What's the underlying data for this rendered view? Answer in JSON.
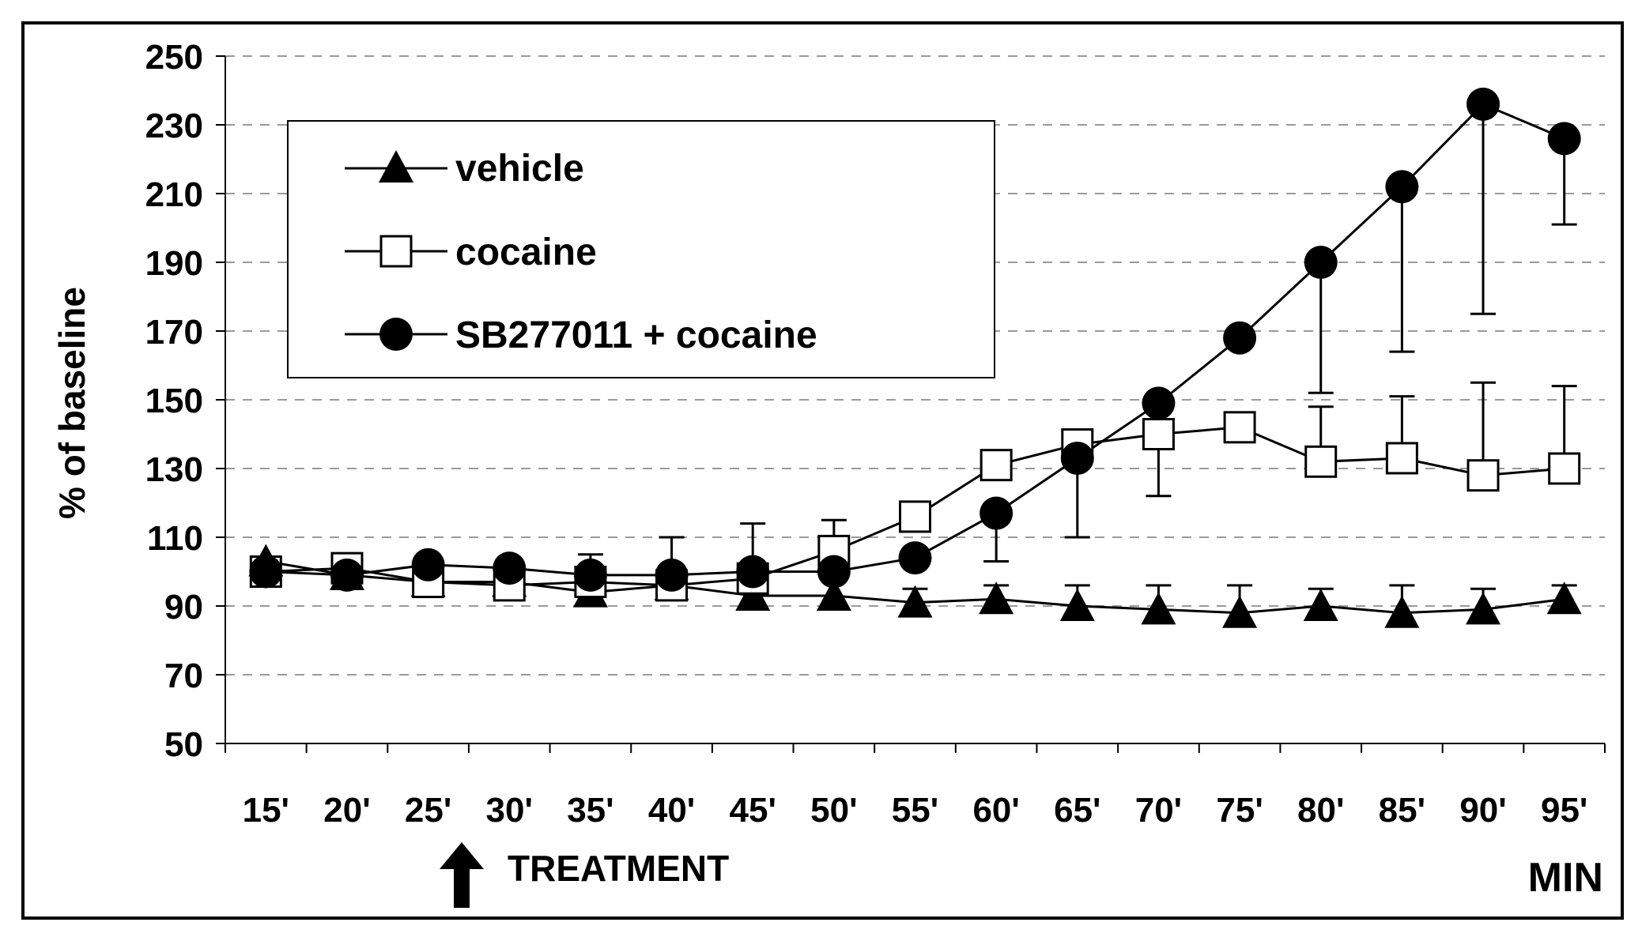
{
  "chart_data": {
    "type": "line",
    "title": "",
    "xlabel": "MIN",
    "ylabel": "% of baseline",
    "ylim": [
      50,
      250
    ],
    "yticks": [
      50,
      70,
      90,
      110,
      130,
      150,
      170,
      190,
      210,
      230,
      250
    ],
    "categories": [
      "15'",
      "20'",
      "25'",
      "30'",
      "35'",
      "40'",
      "45'",
      "50'",
      "55'",
      "60'",
      "65'",
      "70'",
      "75'",
      "80'",
      "85'",
      "90'",
      "95'"
    ],
    "grid": "horizontal dashed",
    "legend_position": "top-left",
    "annotation": {
      "label": "TREATMENT",
      "at": "25'"
    },
    "series": [
      {
        "name": "vehicle",
        "marker": "triangle-filled",
        "values": [
          103,
          99,
          97,
          97,
          94,
          96,
          93,
          93,
          91,
          92,
          90,
          89,
          88,
          90,
          88,
          89,
          92
        ],
        "errors_upper": [
          0,
          0,
          0,
          0,
          0,
          0,
          0,
          0,
          4,
          4,
          6,
          7,
          8,
          5,
          8,
          6,
          4
        ]
      },
      {
        "name": "cocaine",
        "marker": "square-open",
        "values": [
          100,
          101,
          97,
          96,
          97,
          96,
          98,
          106,
          116,
          131,
          137,
          140,
          142,
          132,
          133,
          128,
          130
        ],
        "errors_upper": [
          0,
          0,
          0,
          0,
          8,
          0,
          0,
          9,
          0,
          0,
          0,
          0,
          0,
          16,
          18,
          27,
          24
        ],
        "errors_lower": [
          0,
          0,
          0,
          0,
          0,
          0,
          0,
          0,
          0,
          0,
          0,
          18,
          0,
          0,
          0,
          0,
          0
        ]
      },
      {
        "name": "SB277011 + cocaine",
        "marker": "circle-filled",
        "values": [
          100,
          99,
          102,
          101,
          99,
          99,
          100,
          100,
          104,
          117,
          133,
          149,
          168,
          190,
          212,
          236,
          226
        ],
        "errors_lower": [
          0,
          0,
          0,
          0,
          0,
          0,
          0,
          0,
          0,
          14,
          23,
          0,
          0,
          38,
          48,
          61,
          25
        ],
        "errors_upper": [
          0,
          0,
          0,
          0,
          0,
          11,
          14,
          0,
          0,
          0,
          0,
          0,
          0,
          0,
          0,
          0,
          0
        ]
      }
    ]
  }
}
